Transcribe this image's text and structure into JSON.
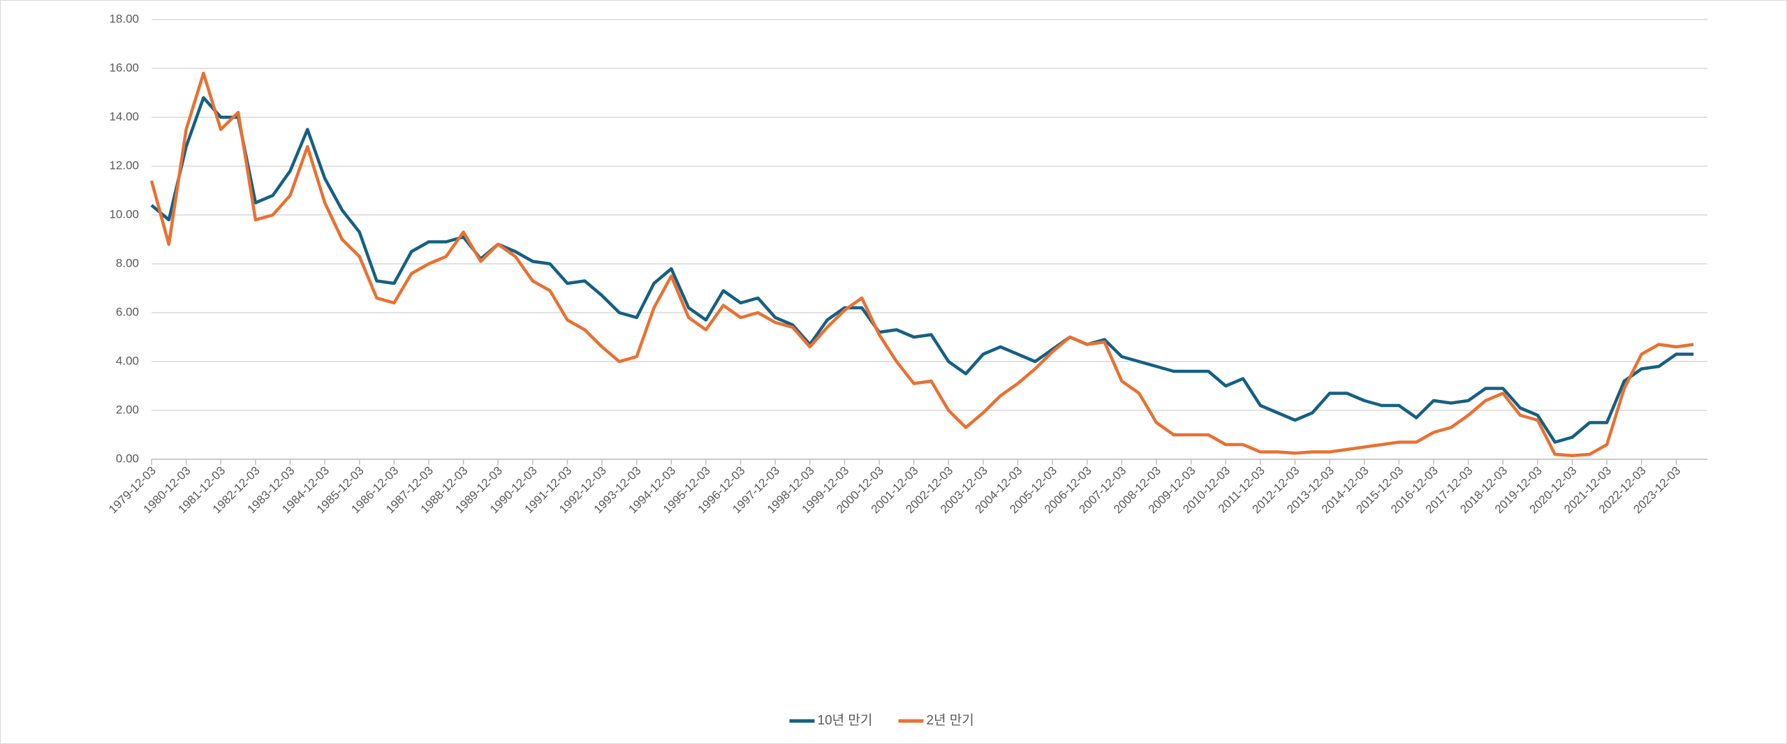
{
  "chart_data": {
    "type": "line",
    "categories": [
      "1979-12-03",
      null,
      "1980-12-03",
      null,
      "1981-12-03",
      null,
      "1982-12-03",
      null,
      "1983-12-03",
      null,
      "1984-12-03",
      null,
      "1985-12-03",
      null,
      "1986-12-03",
      null,
      "1987-12-03",
      null,
      "1988-12-03",
      null,
      "1989-12-03",
      null,
      "1990-12-03",
      null,
      "1991-12-03",
      null,
      "1992-12-03",
      null,
      "1993-12-03",
      null,
      "1994-12-03",
      null,
      "1995-12-03",
      null,
      "1996-12-03",
      null,
      "1997-12-03",
      null,
      "1998-12-03",
      null,
      "1999-12-03",
      null,
      "2000-12-03",
      null,
      "2001-12-03",
      null,
      "2002-12-03",
      null,
      "2003-12-03",
      null,
      "2004-12-03",
      null,
      "2005-12-03",
      null,
      "2006-12-03",
      null,
      "2007-12-03",
      null,
      "2008-12-03",
      null,
      "2009-12-03",
      null,
      "2010-12-03",
      null,
      "2011-12-03",
      null,
      "2012-12-03",
      null,
      "2013-12-03",
      null,
      "2014-12-03",
      null,
      "2015-12-03",
      null,
      "2016-12-03",
      null,
      "2017-12-03",
      null,
      "2018-12-03",
      null,
      "2019-12-03",
      null,
      "2020-12-03",
      null,
      "2021-12-03",
      null,
      "2022-12-03",
      null,
      "2023-12-03",
      null
    ],
    "series": [
      {
        "name": "10년 만기",
        "color": "#156082",
        "values": [
          10.4,
          9.8,
          12.8,
          14.8,
          14.0,
          14.0,
          10.5,
          10.8,
          11.8,
          13.5,
          11.5,
          10.2,
          9.3,
          7.3,
          7.2,
          8.5,
          8.9,
          8.9,
          9.1,
          8.2,
          8.8,
          8.5,
          8.1,
          8.0,
          7.2,
          7.3,
          6.7,
          6.0,
          5.8,
          7.2,
          7.8,
          6.2,
          5.7,
          6.9,
          6.4,
          6.6,
          5.8,
          5.5,
          4.7,
          5.7,
          6.2,
          6.2,
          5.2,
          5.3,
          5.0,
          5.1,
          4.0,
          3.5,
          4.3,
          4.6,
          4.3,
          4.0,
          4.5,
          5.0,
          4.7,
          4.9,
          4.2,
          4.0,
          3.8,
          3.6,
          3.6,
          3.6,
          3.0,
          3.3,
          2.2,
          1.9,
          1.6,
          1.9,
          2.7,
          2.7,
          2.4,
          2.2,
          2.2,
          1.7,
          2.4,
          2.3,
          2.4,
          2.9,
          2.9,
          2.1,
          1.8,
          0.7,
          0.9,
          1.5,
          1.5,
          3.2,
          3.7,
          3.8,
          4.3,
          4.3
        ]
      },
      {
        "name": "2년 만기",
        "color": "#e97132",
        "values": [
          11.4,
          8.8,
          13.5,
          15.8,
          13.5,
          14.2,
          9.8,
          10.0,
          10.8,
          12.8,
          10.5,
          9.0,
          8.3,
          6.6,
          6.4,
          7.6,
          8.0,
          8.3,
          9.3,
          8.1,
          8.8,
          8.3,
          7.3,
          6.9,
          5.7,
          5.3,
          4.6,
          4.0,
          4.2,
          6.2,
          7.5,
          5.8,
          5.3,
          6.3,
          5.8,
          6.0,
          5.6,
          5.4,
          4.6,
          5.4,
          6.1,
          6.6,
          5.1,
          4.0,
          3.1,
          3.2,
          2.0,
          1.3,
          1.9,
          2.6,
          3.1,
          3.7,
          4.4,
          5.0,
          4.7,
          4.8,
          3.2,
          2.7,
          1.5,
          1.0,
          1.0,
          1.0,
          0.6,
          0.6,
          0.3,
          0.3,
          0.25,
          0.3,
          0.3,
          0.4,
          0.5,
          0.6,
          0.7,
          0.7,
          1.1,
          1.3,
          1.8,
          2.4,
          2.7,
          1.8,
          1.6,
          0.2,
          0.15,
          0.2,
          0.6,
          2.9,
          4.3,
          4.7,
          4.6,
          4.7
        ]
      }
    ],
    "ylim": [
      0,
      18
    ],
    "yticks": [
      {
        "value": 0,
        "label": "0.00"
      },
      {
        "value": 2,
        "label": "2.00"
      },
      {
        "value": 4,
        "label": "4.00"
      },
      {
        "value": 6,
        "label": "6.00"
      },
      {
        "value": 8,
        "label": "8.00"
      },
      {
        "value": 10,
        "label": "10.00"
      },
      {
        "value": 12,
        "label": "12.00"
      },
      {
        "value": 14,
        "label": "14.00"
      },
      {
        "value": 16,
        "label": "16.00"
      },
      {
        "value": 18,
        "label": "18.00"
      }
    ],
    "grid": true,
    "legend": "bottom"
  }
}
